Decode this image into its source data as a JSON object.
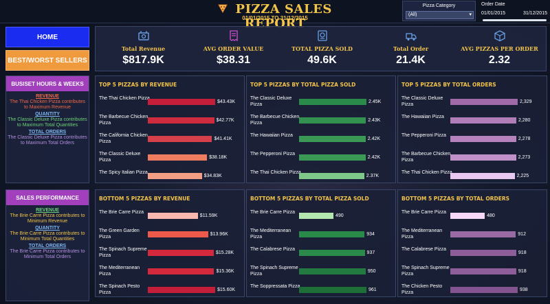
{
  "header": {
    "title": "PIZZA SALES REPORT",
    "date_range": "01/01/2015 TO 31/12/2015",
    "filter_category": {
      "label": "Pizza Category",
      "value": "(All)"
    },
    "filter_date": {
      "label": "Order Date",
      "start": "01/01/2015",
      "end": "31/12/2015"
    }
  },
  "nav": {
    "home": "HOME",
    "best_worst": "BEST/WORST SELLERS"
  },
  "kpis": [
    {
      "label": "Total Revenue",
      "value": "$817.9K",
      "icon": "money-icon"
    },
    {
      "label": "AVG ORDER VALUE",
      "value": "$38.31",
      "icon": "receipt-icon"
    },
    {
      "label": "TOTAL PIZZA SOLD",
      "value": "49.6K",
      "icon": "pizza-box-icon"
    },
    {
      "label": "Total Order",
      "value": "21.4K",
      "icon": "delivery-icon"
    },
    {
      "label": "AVG PIZZAS PER ORDER",
      "value": "2.32",
      "icon": "box-icon"
    }
  ],
  "side_top": {
    "header": "BUSISET HOURS & WEEKS",
    "lines": [
      {
        "text": "REVENUE",
        "style": "hd",
        "color": "#f06a4a"
      },
      {
        "text": "The Thai Chicken Pizza contributes to Maximum Revenue",
        "style": "",
        "color": "#f06a4a"
      },
      {
        "text": "QUANTITY",
        "style": "hd",
        "color": "#7fb6f0"
      },
      {
        "text": "The Classic Deluxe Pizza contributes to Maximum Total Quantities",
        "style": "",
        "color": "#6fd07a"
      },
      {
        "text": "TOTAL ORDERS",
        "style": "hd",
        "color": "#7fb6f0"
      },
      {
        "text": "The Classic Deluxe Pizza contributes to Maximum Total Orders",
        "style": "",
        "color": "#b58fe0"
      }
    ]
  },
  "side_bottom": {
    "header": "SALES PERFORMANCE",
    "lines": [
      {
        "text": "REVENUE",
        "style": "hd",
        "color": "#6fd07a"
      },
      {
        "text": "The Brie Carre Pizza contributes to Minimum Revenue",
        "style": "",
        "color": "#f3c44a"
      },
      {
        "text": "QUANTITY",
        "style": "hd",
        "color": "#7fb6f0"
      },
      {
        "text": "The Brie Carre Pizza contributes to Minimum Total Quantities",
        "style": "",
        "color": "#f3c44a"
      },
      {
        "text": "TOTAL ORDERS",
        "style": "hd",
        "color": "#7fb6f0"
      },
      {
        "text": "The Brie Carre Pizza contributes to Minimum Total Orders",
        "style": "",
        "color": "#b58fe0"
      }
    ]
  },
  "chart_data": [
    {
      "type": "bar",
      "title": "TOP 5 PIZZAS BY REVENUE",
      "categories": [
        "The Thai Chicken Pizza",
        "The Barbecue Chicken Pizza",
        "The California Chicken Pizza",
        "The Classic Deluxe Pizza",
        "The Spicy Italian Pizza"
      ],
      "values": [
        43430,
        42770,
        41410,
        38180,
        34830
      ],
      "labels": [
        "$43.43K",
        "$42.77K",
        "$41.41K",
        "$38.18K",
        "$34.83K"
      ],
      "colors": [
        "#c41e3a",
        "#cf2b3e",
        "#d6404a",
        "#ee7d60",
        "#f29f86"
      ],
      "xlim": [
        0,
        43430
      ]
    },
    {
      "type": "bar",
      "title": "TOP 5 PIZZAS BY TOTAL PIZZA SOLD",
      "categories": [
        "The Classic Deluxe Pizza",
        "The Barbecue Chicken Pizza",
        "The Hawaiian Pizza",
        "The Pepperoni Pizza",
        "The Thai Chicken Pizza"
      ],
      "values": [
        2450,
        2430,
        2420,
        2420,
        2370
      ],
      "labels": [
        "2.45K",
        "2.43K",
        "2.42K",
        "2.42K",
        "2.37K"
      ],
      "colors": [
        "#2a8a4a",
        "#33924f",
        "#3a9a55",
        "#3a9a55",
        "#7ec98a"
      ],
      "xlim": [
        0,
        2450
      ]
    },
    {
      "type": "bar",
      "title": "TOP 5 PIZZAS BY TOTAL ORDERS",
      "categories": [
        "The Classic Deluxe Pizza",
        "The Hawaiian Pizza",
        "The Pepperoni Pizza",
        "The Barbecue Chicken Pizza",
        "The Thai Chicken Pizza"
      ],
      "values": [
        2329,
        2280,
        2278,
        2273,
        2225
      ],
      "labels": [
        "2,329",
        "2,280",
        "2,278",
        "2,273",
        "2,225"
      ],
      "colors": [
        "#a06aa8",
        "#b07db8",
        "#b582bd",
        "#c090c8",
        "#e8c8ee"
      ],
      "xlim": [
        0,
        2329
      ]
    },
    {
      "type": "bar",
      "title": "BOTTOM 5 PIZZAS BY REVENUE",
      "categories": [
        "The Brie Carre Pizza",
        "The Green Garden Pizza",
        "The Spinach Supreme Pizza",
        "The Mediterranean Pizza",
        "The Spinach Pesto Pizza"
      ],
      "values": [
        11590,
        13960,
        15280,
        15360,
        15600
      ],
      "labels": [
        "$11.59K",
        "$13.96K",
        "$15.28K",
        "$15.36K",
        "$15.60K"
      ],
      "colors": [
        "#f7b8b0",
        "#ee5a4a",
        "#d4283c",
        "#d4283c",
        "#c41e3a"
      ],
      "xlim": [
        0,
        15600
      ]
    },
    {
      "type": "bar",
      "title": "BOTTOM 5 PIZZAS BY TOTAL PIZZA SOLD",
      "categories": [
        "The Brie Carre Pizza",
        "The Mediterranean Pizza",
        "The Calabrese Pizza",
        "The Spinach Supreme Pizza",
        "The Soppressata Pizza"
      ],
      "values": [
        490,
        934,
        937,
        950,
        961
      ],
      "labels": [
        "490",
        "934",
        "937",
        "950",
        "961"
      ],
      "colors": [
        "#b4e6b0",
        "#2a8a4a",
        "#2a8a4a",
        "#237a40",
        "#1e6e38"
      ],
      "xlim": [
        0,
        961
      ]
    },
    {
      "type": "bar",
      "title": "BOTTOM 5 PIZZAS BY TOTAL ORDERS",
      "categories": [
        "The Brie Carre Pizza",
        "The Mediterranean Pizza",
        "The Calabrese Pizza",
        "The Spinach Supreme Pizza",
        "The Chicken Pesto Pizza"
      ],
      "values": [
        480,
        912,
        918,
        918,
        938
      ],
      "labels": [
        "480",
        "912",
        "918",
        "918",
        "938"
      ],
      "colors": [
        "#f5d8f8",
        "#9a6aa5",
        "#8e5e9a",
        "#8e5e9a",
        "#845490"
      ],
      "xlim": [
        0,
        938
      ]
    }
  ]
}
